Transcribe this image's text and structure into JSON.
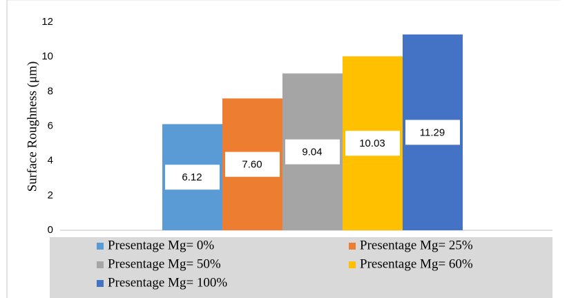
{
  "chart_data": {
    "type": "bar",
    "y_label": "Surface Roughness  (μm)",
    "categories": [
      null
    ],
    "series": [
      {
        "name": "Presentage Mg= 0%",
        "color": "#5b9bd5",
        "values": [
          6.12
        ],
        "value_labels": [
          "6.12"
        ]
      },
      {
        "name": "Presentage Mg= 25%",
        "color": "#ed7d31",
        "values": [
          7.6
        ],
        "value_labels": [
          "7.60"
        ]
      },
      {
        "name": "Presentage Mg= 50%",
        "color": "#a5a5a5",
        "values": [
          9.04
        ],
        "value_labels": [
          "9.04"
        ]
      },
      {
        "name": "Presentage Mg= 60%",
        "color": "#ffc000",
        "values": [
          10.03
        ],
        "value_labels": [
          "10.03"
        ]
      },
      {
        "name": "Presentage Mg= 100%",
        "color": "#4472c4",
        "values": [
          11.29
        ],
        "value_labels": [
          "11.29"
        ]
      }
    ],
    "ylim": [
      0,
      12
    ],
    "yticks": [
      0,
      2,
      4,
      6,
      8,
      10,
      12
    ],
    "grid": false,
    "legend": "bottom"
  }
}
